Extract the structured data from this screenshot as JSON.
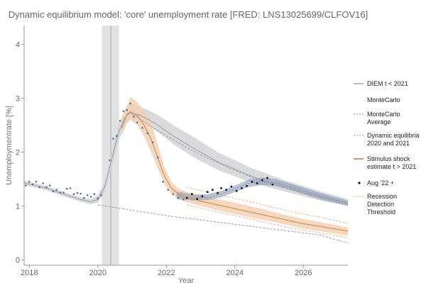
{
  "chart_data": {
    "type": "line",
    "title": "Dynamic equilibrium model: 'core' unemployment rate [FRED: LNS13025699/CLFOV16]",
    "xlabel": "Year",
    "ylabel": "Unemploymentrate [%]",
    "xlim": [
      2017.85,
      2027.3
    ],
    "ylim": [
      -0.1,
      4.35
    ],
    "x_ticks": [
      2018,
      2020,
      2022,
      2024,
      2026
    ],
    "y_ticks": [
      0,
      1,
      2,
      3,
      4
    ],
    "grid": false,
    "legend_position": "right",
    "colors": {
      "diem": "#a6a9b8",
      "montecarlo_band": "#7f96b3",
      "montecarlo_avg": "#6c8fbd",
      "band_gray": "#d4d4d4",
      "dashed_gray": "#999999",
      "stimulus": "#d79a64",
      "stimulus_band": "#f2ceb0",
      "points_blue": "#4f6fa8",
      "points_black": "#111111",
      "recession": "#f0b283"
    },
    "shock_band": {
      "x": [
        2020.12,
        2020.62
      ]
    },
    "shock_line_x": 2020.38,
    "legend": [
      {
        "key": "diem",
        "label": "DIEM t < 2021",
        "style": "solid-gray"
      },
      {
        "key": "montecarlo",
        "label": "MonteCarlo",
        "style": "none"
      },
      {
        "key": "mc_avg",
        "label": "MonteCarlo Average",
        "style": "dashed-blue"
      },
      {
        "key": "dyn_eq",
        "label": "Dynamic equilibria 2020 and 2021",
        "style": "dashed-gray"
      },
      {
        "key": "stimulus",
        "label": "Stimulus shock estimate t > 2021",
        "style": "solid-orange"
      },
      {
        "key": "aug22",
        "label": "Aug '22 +",
        "style": "dot-black"
      },
      {
        "key": "recession",
        "label": "Recession Detection Threshold",
        "style": "dashed-orange"
      }
    ],
    "series": [
      {
        "key": "diem",
        "x": [
          2017.85,
          2018.5,
          2019.0,
          2019.5,
          2019.8,
          2020.0,
          2020.2,
          2020.4,
          2020.6,
          2020.8,
          2020.95,
          2021.2,
          2021.5,
          2021.8,
          2022.2,
          2022.8,
          2023.5,
          2024.5,
          2025.5,
          2026.5,
          2027.3
        ],
        "values": [
          1.43,
          1.33,
          1.22,
          1.12,
          1.08,
          1.12,
          1.35,
          1.85,
          2.35,
          2.65,
          2.73,
          2.69,
          2.6,
          2.48,
          2.3,
          2.07,
          1.82,
          1.55,
          1.35,
          1.18,
          1.06
        ]
      },
      {
        "key": "band_low",
        "x": [
          2017.85,
          2018.5,
          2019.0,
          2019.5,
          2019.8,
          2020.0,
          2020.2,
          2020.4,
          2020.6,
          2020.8,
          2020.95,
          2021.2,
          2021.5,
          2021.8,
          2022.2,
          2022.8,
          2023.5,
          2024.5,
          2025.5,
          2026.5,
          2027.3
        ],
        "values": [
          1.39,
          1.29,
          1.18,
          1.08,
          1.03,
          1.06,
          1.25,
          1.7,
          2.2,
          2.5,
          2.6,
          2.58,
          2.48,
          2.35,
          2.15,
          1.9,
          1.67,
          1.43,
          1.26,
          1.1,
          1.0
        ]
      },
      {
        "key": "band_high",
        "x": [
          2017.85,
          2018.5,
          2019.0,
          2019.5,
          2019.8,
          2020.0,
          2020.2,
          2020.4,
          2020.6,
          2020.8,
          2020.95,
          2021.2,
          2021.5,
          2021.8,
          2022.2,
          2022.8,
          2023.5,
          2024.5,
          2025.5,
          2026.5,
          2027.3
        ],
        "values": [
          1.47,
          1.37,
          1.26,
          1.16,
          1.13,
          1.2,
          1.45,
          1.97,
          2.5,
          2.8,
          2.92,
          2.85,
          2.77,
          2.67,
          2.5,
          2.28,
          2.0,
          1.7,
          1.47,
          1.27,
          1.13
        ]
      },
      {
        "key": "dyn_eq_upper",
        "x": [
          2020.95,
          2021.5,
          2022.0,
          2022.5,
          2023.0,
          2023.5,
          2024.0,
          2024.5,
          2025.0,
          2025.5,
          2026.0,
          2026.5,
          2027.3
        ],
        "values": [
          2.73,
          2.5,
          2.3,
          2.12,
          1.95,
          1.8,
          1.66,
          1.53,
          1.42,
          1.33,
          1.24,
          1.16,
          1.05
        ]
      },
      {
        "key": "dyn_eq_lower",
        "x": [
          2020.0,
          2020.5,
          2021.0,
          2021.5,
          2022.0,
          2022.5,
          2023.0,
          2023.5,
          2024.0,
          2024.5,
          2025.0,
          2025.5,
          2026.0,
          2026.5,
          2027.3
        ],
        "values": [
          1.02,
          0.97,
          0.92,
          0.87,
          0.82,
          0.78,
          0.74,
          0.7,
          0.66,
          0.62,
          0.58,
          0.54,
          0.5,
          0.46,
          0.31
        ]
      },
      {
        "key": "stimulus",
        "x": [
          2020.7,
          2020.85,
          2020.95,
          2021.15,
          2021.35,
          2021.55,
          2021.75,
          2021.95,
          2022.15,
          2022.35,
          2022.6,
          2023.0,
          2023.5,
          2024.0,
          2024.5,
          2025.0,
          2025.5,
          2026.0,
          2026.5,
          2027.3
        ],
        "values": [
          2.45,
          2.7,
          2.75,
          2.68,
          2.5,
          2.25,
          1.9,
          1.55,
          1.33,
          1.22,
          1.15,
          1.09,
          1.02,
          0.95,
          0.88,
          0.81,
          0.74,
          0.67,
          0.62,
          0.53
        ]
      },
      {
        "key": "stim_low",
        "x": [
          2020.7,
          2020.85,
          2020.95,
          2021.15,
          2021.35,
          2021.55,
          2021.75,
          2021.95,
          2022.15,
          2022.35,
          2022.6,
          2023.0,
          2023.5,
          2024.0,
          2024.5,
          2025.0,
          2025.5,
          2026.0,
          2026.5,
          2027.3
        ],
        "values": [
          2.3,
          2.55,
          2.6,
          2.5,
          2.3,
          2.0,
          1.7,
          1.4,
          1.22,
          1.13,
          1.07,
          1.0,
          0.92,
          0.85,
          0.78,
          0.72,
          0.65,
          0.58,
          0.53,
          0.45
        ]
      },
      {
        "key": "stim_high",
        "x": [
          2020.7,
          2020.85,
          2020.95,
          2021.15,
          2021.35,
          2021.55,
          2021.75,
          2021.95,
          2022.15,
          2022.35,
          2022.6,
          2023.0,
          2023.5,
          2024.0,
          2024.5,
          2025.0,
          2025.5,
          2026.0,
          2026.5,
          2027.3
        ],
        "values": [
          2.6,
          2.85,
          3.03,
          2.93,
          2.77,
          2.55,
          2.15,
          1.72,
          1.45,
          1.33,
          1.26,
          1.2,
          1.13,
          1.06,
          0.99,
          0.91,
          0.83,
          0.76,
          0.7,
          0.6
        ]
      },
      {
        "key": "recession_upper",
        "x": [
          2022.6,
          2023.0,
          2023.5,
          2024.0,
          2024.5,
          2025.0,
          2025.5,
          2026.0,
          2026.5,
          2027.3
        ],
        "values": [
          1.35,
          1.29,
          1.21,
          1.14,
          1.07,
          0.99,
          0.92,
          0.85,
          0.79,
          0.68
        ]
      },
      {
        "key": "recession_lower",
        "x": [
          2022.6,
          2023.0,
          2023.5,
          2024.0,
          2024.5,
          2025.0,
          2025.5,
          2026.0,
          2026.5,
          2027.3
        ],
        "values": [
          1.02,
          0.96,
          0.89,
          0.82,
          0.75,
          0.68,
          0.61,
          0.55,
          0.5,
          0.41
        ]
      },
      {
        "key": "montecarlo_avg",
        "x": [
          2022.3,
          2022.8,
          2023.2,
          2023.6,
          2024.0,
          2024.4,
          2024.8,
          2025.2,
          2025.6,
          2026.0,
          2026.5,
          2027.3
        ],
        "values": [
          1.2,
          1.15,
          1.16,
          1.22,
          1.32,
          1.42,
          1.46,
          1.43,
          1.36,
          1.28,
          1.18,
          1.05
        ]
      },
      {
        "key": "mc_low",
        "x": [
          2022.3,
          2022.8,
          2023.2,
          2023.6,
          2024.0,
          2024.4,
          2024.8,
          2025.2,
          2025.6,
          2026.0,
          2026.5,
          2027.3
        ],
        "values": [
          1.13,
          1.1,
          1.11,
          1.16,
          1.26,
          1.35,
          1.39,
          1.37,
          1.3,
          1.22,
          1.12,
          1.0
        ]
      },
      {
        "key": "mc_high",
        "x": [
          2022.3,
          2022.8,
          2023.2,
          2023.6,
          2024.0,
          2024.4,
          2024.8,
          2025.2,
          2025.6,
          2026.0,
          2026.5,
          2027.3
        ],
        "values": [
          1.27,
          1.21,
          1.22,
          1.28,
          1.38,
          1.49,
          1.53,
          1.5,
          1.42,
          1.34,
          1.24,
          1.1
        ]
      },
      {
        "key": "points_blue",
        "x": [
          2017.9,
          2018.0,
          2018.1,
          2018.2,
          2018.3,
          2018.4,
          2018.5,
          2018.6,
          2018.7,
          2018.8,
          2018.9,
          2019.0,
          2019.1,
          2019.2,
          2019.3,
          2019.4,
          2019.5,
          2019.6,
          2019.7,
          2019.8,
          2019.9,
          2020.0,
          2020.1,
          2020.35,
          2020.45,
          2020.55,
          2020.65,
          2020.75,
          2020.85,
          2020.95,
          2021.05,
          2021.15,
          2021.3,
          2021.45,
          2021.6,
          2021.75,
          2021.9,
          2022.05,
          2022.2,
          2022.35,
          2022.5
        ],
        "values": [
          1.38,
          1.45,
          1.4,
          1.45,
          1.35,
          1.42,
          1.35,
          1.38,
          1.27,
          1.3,
          1.25,
          1.25,
          1.32,
          1.33,
          1.22,
          1.24,
          1.23,
          1.15,
          1.2,
          1.17,
          1.22,
          1.14,
          1.2,
          1.85,
          2.25,
          2.3,
          2.58,
          2.76,
          2.78,
          2.9,
          2.66,
          2.55,
          2.45,
          2.35,
          2.18,
          1.9,
          1.45,
          1.3,
          1.22,
          1.15,
          1.12
        ]
      },
      {
        "key": "points_black",
        "x": [
          2022.6,
          2022.75,
          2022.9,
          2023.05,
          2023.2,
          2023.35,
          2023.5,
          2023.6,
          2023.75,
          2023.9,
          2024.05,
          2024.2,
          2024.35,
          2024.5,
          2024.65,
          2024.8,
          2024.95,
          2025.1
        ],
        "values": [
          1.15,
          1.22,
          1.13,
          1.18,
          1.26,
          1.3,
          1.24,
          1.33,
          1.3,
          1.36,
          1.28,
          1.33,
          1.37,
          1.45,
          1.42,
          1.48,
          1.52,
          1.4
        ]
      }
    ]
  }
}
